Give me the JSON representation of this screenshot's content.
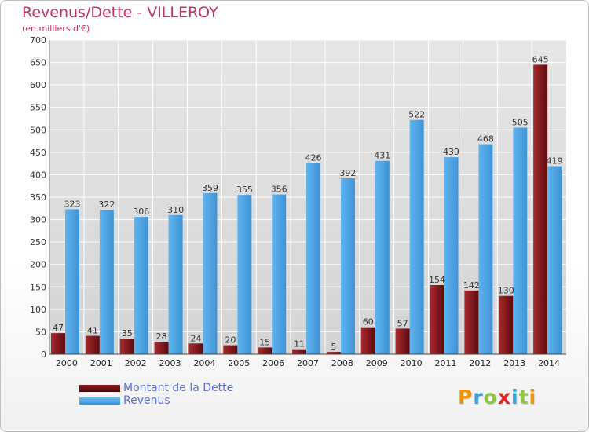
{
  "title": "Revenus/Dette - VILLEROY",
  "subtitle": "(en milliers d'€)",
  "colors": {
    "dette": "#6b0f12",
    "revenus": "#4fa6e6",
    "grid": "#ffffff",
    "title": "#c0306a",
    "legend_text": "#5a6fd8"
  },
  "chart_data": {
    "type": "bar",
    "categories": [
      "2000",
      "2001",
      "2002",
      "2003",
      "2004",
      "2005",
      "2006",
      "2007",
      "2008",
      "2009",
      "2010",
      "2011",
      "2012",
      "2013",
      "2014"
    ],
    "series": [
      {
        "name": "Montant de la Dette",
        "values": [
          47,
          41,
          35,
          28,
          24,
          20,
          15,
          11,
          5,
          60,
          57,
          154,
          142,
          130,
          645
        ]
      },
      {
        "name": "Revenus",
        "values": [
          323,
          322,
          306,
          310,
          359,
          355,
          356,
          426,
          392,
          431,
          522,
          439,
          468,
          505,
          419
        ]
      }
    ],
    "ylim": [
      0,
      700
    ],
    "yticks": [
      0,
      50,
      100,
      150,
      200,
      250,
      300,
      350,
      400,
      450,
      500,
      550,
      600,
      650,
      700
    ],
    "grid": true,
    "legend": "bottom-left"
  },
  "legend": {
    "items": [
      {
        "label": "Montant de la Dette"
      },
      {
        "label": "Revenus"
      }
    ]
  },
  "logo": {
    "letters": [
      "P",
      "r",
      "o",
      "x",
      "i",
      "t",
      "i"
    ],
    "colors": [
      "#f39200",
      "#3aa1d9",
      "#8dc63f",
      "#e2231a",
      "#3aa1d9",
      "#8dc63f",
      "#f39200"
    ]
  }
}
